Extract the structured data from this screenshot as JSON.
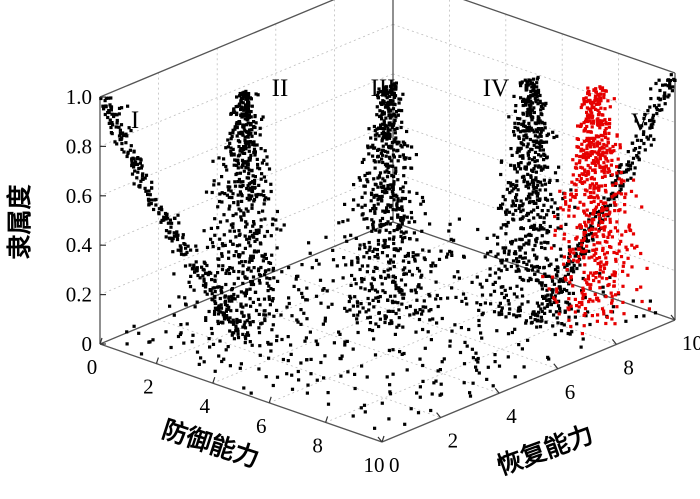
{
  "chart_data": {
    "type": "scatter",
    "projection": "3d",
    "title": "",
    "axes": {
      "x": {
        "label": "防御能力",
        "range": [
          0,
          10
        ],
        "ticks": [
          "0",
          "2",
          "4",
          "6",
          "8",
          "10"
        ]
      },
      "y": {
        "label": "恢复能力",
        "range": [
          0,
          10
        ],
        "ticks": [
          "0",
          "2",
          "4",
          "6",
          "8",
          "10"
        ]
      },
      "z": {
        "label": "隶属度",
        "range": [
          0,
          1
        ],
        "ticks": [
          "0",
          "0.2",
          "0.4",
          "0.6",
          "0.8",
          "1.0"
        ]
      }
    },
    "grid": true,
    "colors": {
      "default": "#000000",
      "highlight": "#e60000"
    },
    "clusters": [
      {
        "label": "I",
        "shape": "decreasing",
        "center": [
          0,
          0
        ],
        "peak": 1.0,
        "color": "#000000",
        "highlighted": false
      },
      {
        "label": "II",
        "shape": "peak",
        "center": [
          2.5,
          2.5
        ],
        "peak": 1.0,
        "color": "#000000",
        "highlighted": false
      },
      {
        "label": "III",
        "shape": "peak",
        "center": [
          5,
          5
        ],
        "peak": 1.0,
        "color": "#000000",
        "highlighted": false
      },
      {
        "label": "IV",
        "shape": "peak",
        "center": [
          7.5,
          7.5
        ],
        "peak": 1.0,
        "color": "#000000",
        "highlighted": false
      },
      {
        "label": "",
        "shape": "peak",
        "center": [
          8.6,
          8.6
        ],
        "peak": 0.96,
        "color": "#e60000",
        "highlighted": true
      },
      {
        "label": "V",
        "shape": "increasing",
        "center": [
          10,
          10
        ],
        "peak": 1.0,
        "color": "#000000",
        "highlighted": false
      }
    ]
  }
}
